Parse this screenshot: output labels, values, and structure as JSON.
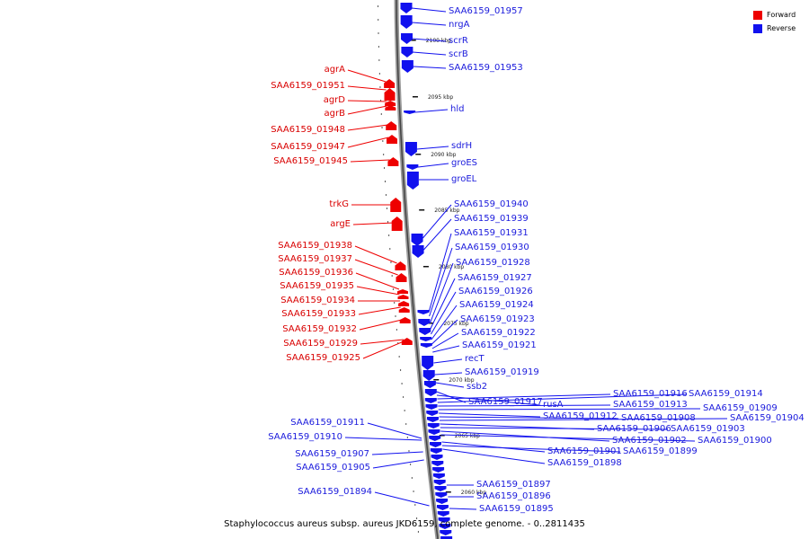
{
  "legend": {
    "forward_label": "Forward",
    "reverse_label": "Reverse",
    "forward_color": "#ee0000",
    "reverse_color": "#1111ee"
  },
  "caption": "Staphylococcus aureus subsp. aureus JKD6159, complete genome. - 0..2811435",
  "ticks": [
    "2100 kbp",
    "2095 kbp",
    "2090 kbp",
    "2085 kbp",
    "2080 kbp",
    "2075 kbp",
    "2070 kbp",
    "2065 kbp",
    "2060 kbp"
  ],
  "forward_labels": [
    "agrA",
    "SAA6159_01951",
    "agrD",
    "agrB",
    "SAA6159_01948",
    "SAA6159_01947",
    "SAA6159_01945",
    "trkG",
    "argE",
    "SAA6159_01938",
    "SAA6159_01937",
    "SAA6159_01936",
    "SAA6159_01935",
    "SAA6159_01934",
    "SAA6159_01933",
    "SAA6159_01932",
    "SAA6159_01929",
    "SAA6159_01925"
  ],
  "reverse_labels": [
    "SAA6159_01957",
    "nrgA",
    "scrR",
    "scrB",
    "SAA6159_01953",
    "hld",
    "sdrH",
    "groES",
    "groEL",
    "SAA6159_01940",
    "SAA6159_01939",
    "SAA6159_01931",
    "SAA6159_01930",
    "SAA6159_01928",
    "SAA6159_01927",
    "SAA6159_01926",
    "SAA6159_01924",
    "SAA6159_01923",
    "SAA6159_01922",
    "SAA6159_01921",
    "recT",
    "SAA6159_01919",
    "ssb2",
    "SAA6159_01917",
    "rusA",
    "SAA6159_01916",
    "SAA6159_01914",
    "SAA6159_01913",
    "SAA6159_01909",
    "SAA6159_01912",
    "SAA6159_01908",
    "SAA6159_01904",
    "SAA6159_01906",
    "SAA6159_01903",
    "SAA6159_01902",
    "SAA6159_01900",
    "SAA6159_01901",
    "SAA6159_01899",
    "SAA6159_01898",
    "SAA6159_01897",
    "SAA6159_01896",
    "SAA6159_01895"
  ],
  "left_reverse_labels": [
    "SAA6159_01911",
    "SAA6159_01910",
    "SAA6159_01907",
    "SAA6159_01905",
    "SAA6159_01894"
  ]
}
